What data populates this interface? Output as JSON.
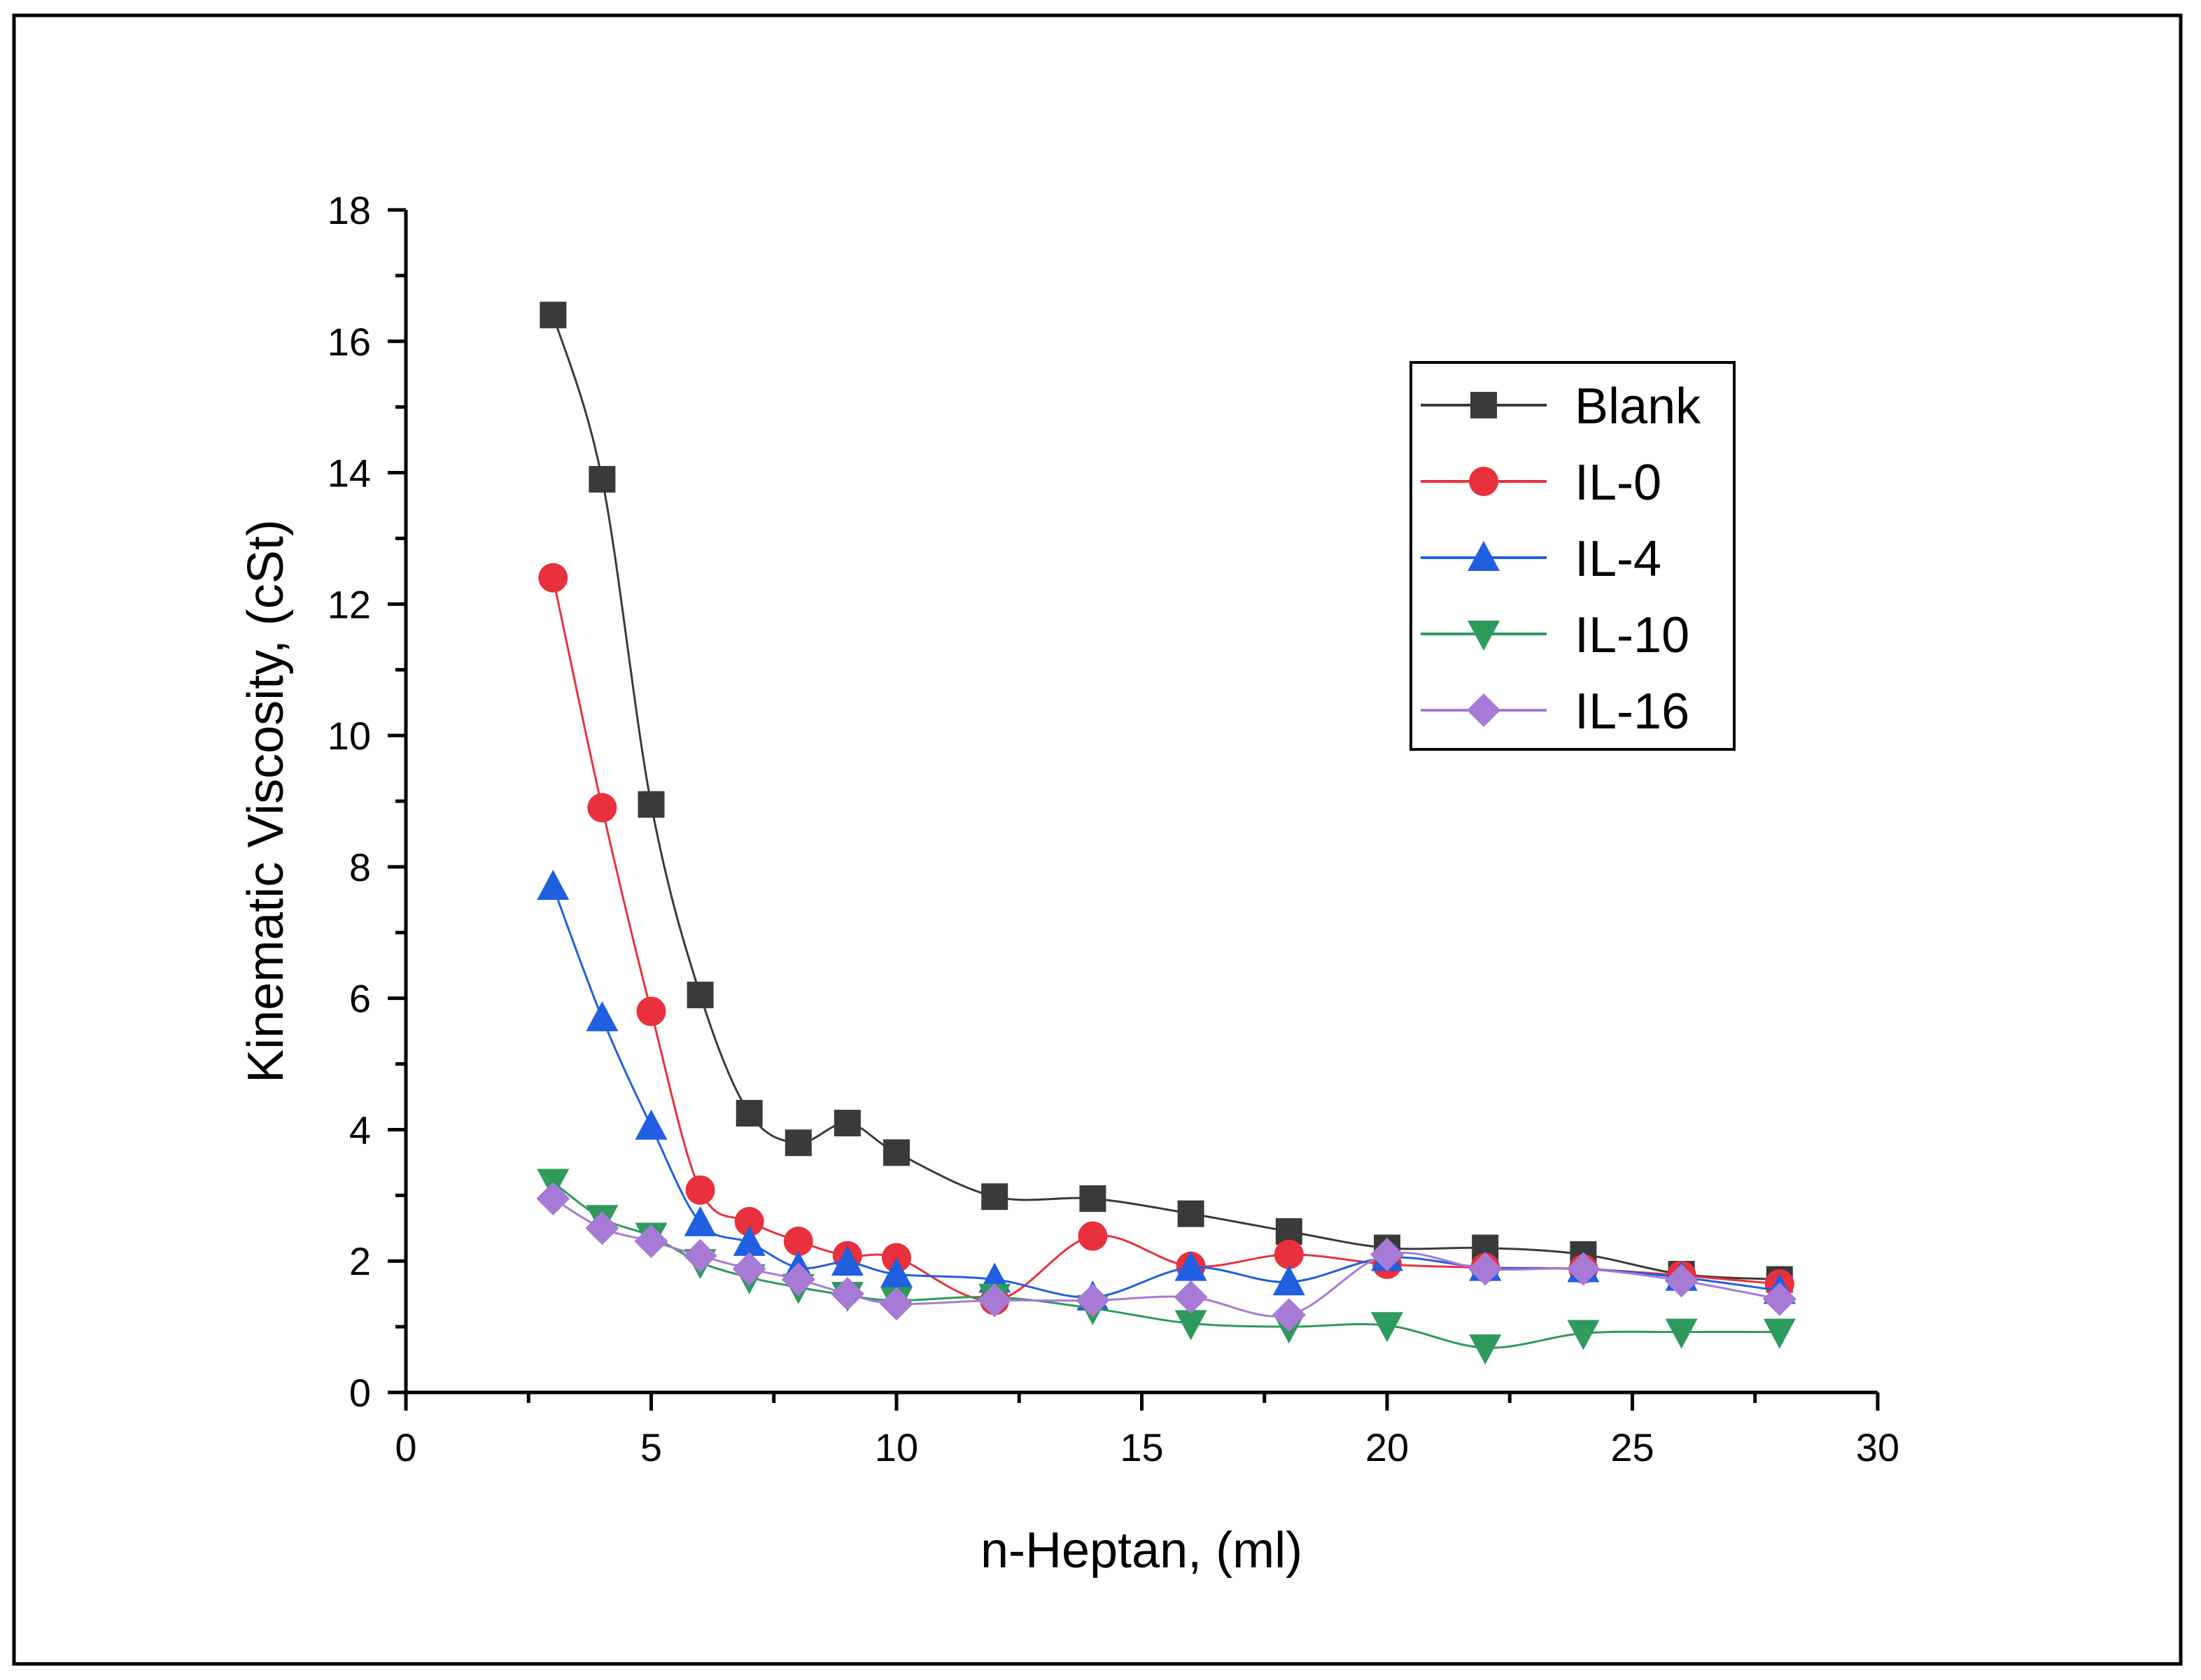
{
  "chart_data": {
    "type": "line",
    "title": "",
    "xlabel": "n-Heptan, (ml)",
    "ylabel": "Kinematic Viscosity, (cSt)",
    "xlim": [
      0,
      30
    ],
    "ylim": [
      0,
      18
    ],
    "xticks": [
      0,
      5,
      10,
      15,
      20,
      25,
      30
    ],
    "yticks": [
      0,
      2,
      4,
      6,
      8,
      10,
      12,
      14,
      16,
      18
    ],
    "x_minor_step": 2.5,
    "y_minor_step": 1,
    "grid": false,
    "smooth": true,
    "legend_position": "top-right",
    "x": [
      3,
      4,
      5,
      6,
      7,
      8,
      9,
      10,
      12,
      14,
      16,
      18,
      20,
      22,
      24,
      26,
      28
    ],
    "series": [
      {
        "name": "Blank",
        "marker": "square",
        "color": "#3a3a3a",
        "values": [
          16.4,
          13.9,
          8.95,
          6.05,
          4.25,
          3.8,
          4.1,
          3.65,
          2.98,
          2.95,
          2.72,
          2.45,
          2.2,
          2.2,
          2.1,
          1.8,
          1.72
        ]
      },
      {
        "name": "IL-0",
        "marker": "circle",
        "color": "#e8313c",
        "values": [
          12.4,
          8.9,
          5.8,
          3.08,
          2.6,
          2.3,
          2.08,
          2.05,
          1.4,
          2.38,
          1.92,
          2.1,
          1.95,
          1.9,
          1.88,
          1.78,
          1.65
        ]
      },
      {
        "name": "IL-4",
        "marker": "triangle-up",
        "color": "#1f5fe0",
        "values": [
          7.7,
          5.7,
          4.05,
          2.58,
          2.28,
          1.9,
          1.98,
          1.8,
          1.72,
          1.45,
          1.9,
          1.68,
          2.05,
          1.9,
          1.88,
          1.75,
          1.55
        ]
      },
      {
        "name": "IL-10",
        "marker": "triangle-down",
        "color": "#2e9a5c",
        "values": [
          3.2,
          2.65,
          2.38,
          1.98,
          1.75,
          1.6,
          1.48,
          1.4,
          1.45,
          1.28,
          1.05,
          1.0,
          1.02,
          0.68,
          0.9,
          0.92,
          0.92
        ]
      },
      {
        "name": "IL-16",
        "marker": "diamond",
        "color": "#a77ad6",
        "values": [
          2.95,
          2.5,
          2.3,
          2.08,
          1.88,
          1.72,
          1.5,
          1.35,
          1.4,
          1.4,
          1.45,
          1.18,
          2.1,
          1.88,
          1.88,
          1.7,
          1.42
        ]
      }
    ]
  }
}
